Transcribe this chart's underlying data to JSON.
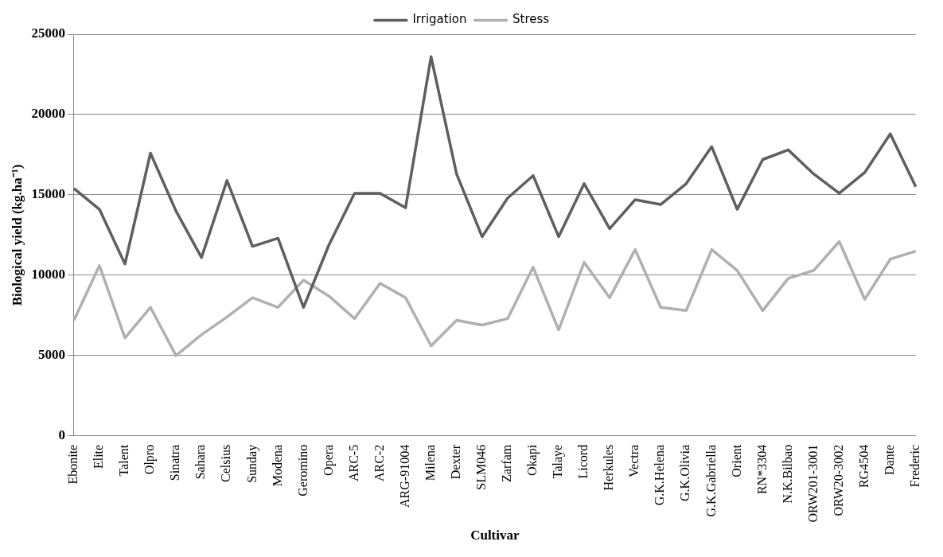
{
  "chart_data": {
    "type": "line",
    "xlabel": "Cultivar",
    "ylabel": "Biological yield (kg.ha⁻¹)",
    "categories": [
      "Ebonite",
      "Elite",
      "Talent",
      "Olpro",
      "Sinatra",
      "Sahara",
      "Celsius",
      "Sunday",
      "Modena",
      "Geromino",
      "Opera",
      "ARC-5",
      "ARC-2",
      "ARG-91004",
      "Milena",
      "Dexter",
      "SLM046",
      "Zarfam",
      "Okapi",
      "Talaye",
      "Licord",
      "Herkules",
      "Vectra",
      "G.K.Helena",
      "G.K.Olivia",
      "G.K.Gabriella",
      "Orient",
      "RN*3304",
      "N.K.Bilbao",
      "ORW201-3001",
      "ORW20-3002",
      "RG4504",
      "Dante",
      "Frederic"
    ],
    "series": [
      {
        "name": "Irrigation",
        "color": "#5f5f5f",
        "values": [
          15400,
          14100,
          10700,
          17600,
          14000,
          11100,
          15900,
          11800,
          12300,
          8000,
          11900,
          15100,
          15100,
          14200,
          23600,
          16300,
          12400,
          14800,
          16200,
          12400,
          15700,
          12900,
          14700,
          14400,
          15700,
          18000,
          14100,
          17200,
          17800,
          16300,
          15100,
          16400,
          18800,
          15500
        ]
      },
      {
        "name": "Stress",
        "color": "#b0b0b0",
        "values": [
          7200,
          10600,
          6100,
          8000,
          5000,
          6300,
          7400,
          8600,
          8000,
          9700,
          8700,
          7300,
          9500,
          8600,
          5600,
          7200,
          6900,
          7300,
          10500,
          6600,
          10800,
          8600,
          11600,
          8000,
          7800,
          11600,
          10300,
          7800,
          9800,
          10300,
          12100,
          8500,
          11000,
          11500
        ]
      }
    ],
    "ylim": [
      0,
      25000
    ],
    "yticks": [
      0,
      5000,
      10000,
      15000,
      20000,
      25000
    ],
    "grid": "y",
    "legend": "top",
    "marker": "none"
  }
}
